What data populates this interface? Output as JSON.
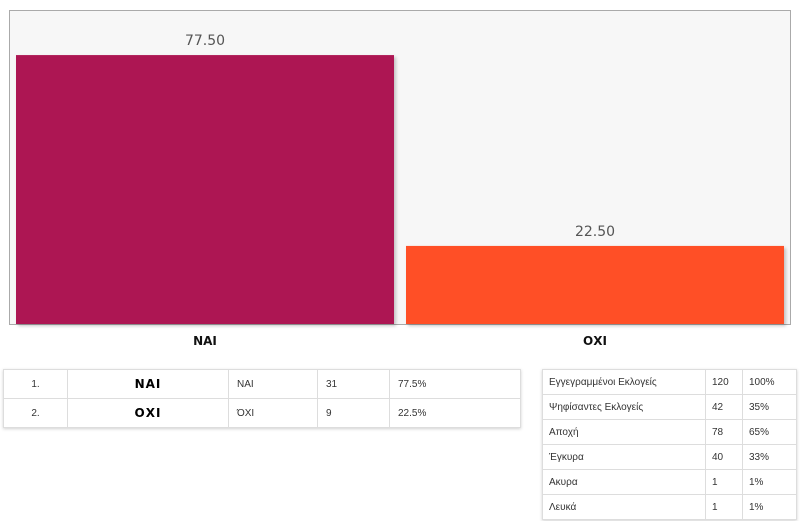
{
  "chart_data": {
    "type": "bar",
    "categories": [
      "ΝΑΙ",
      "ΟΧΙ"
    ],
    "values": [
      77.5,
      22.5
    ],
    "value_labels": [
      "77.50",
      "22.50"
    ],
    "colors": [
      "#ad1653",
      "#ff5027"
    ],
    "ylim": [
      0,
      100
    ],
    "grid": false,
    "legend": "none"
  },
  "results": [
    {
      "rank": "1.",
      "logo": "ΝΑΙ",
      "name": "ΝΑΙ",
      "votes": "31",
      "percent": "77.5%"
    },
    {
      "rank": "2.",
      "logo": "ΟΧΙ",
      "name": "ΌΧΙ",
      "votes": "9",
      "percent": "22.5%"
    }
  ],
  "stats": [
    {
      "label": "Εγγεγραμμένοι Εκλογείς",
      "count": "120",
      "percent": "100%"
    },
    {
      "label": "Ψηφίσαντες Εκλογείς",
      "count": "42",
      "percent": "35%"
    },
    {
      "label": "Αποχή",
      "count": "78",
      "percent": "65%"
    },
    {
      "label": "Έγκυρα",
      "count": "40",
      "percent": "33%"
    },
    {
      "label": "Ακυρα",
      "count": "1",
      "percent": "1%"
    },
    {
      "label": "Λευκά",
      "count": "1",
      "percent": "1%"
    }
  ]
}
